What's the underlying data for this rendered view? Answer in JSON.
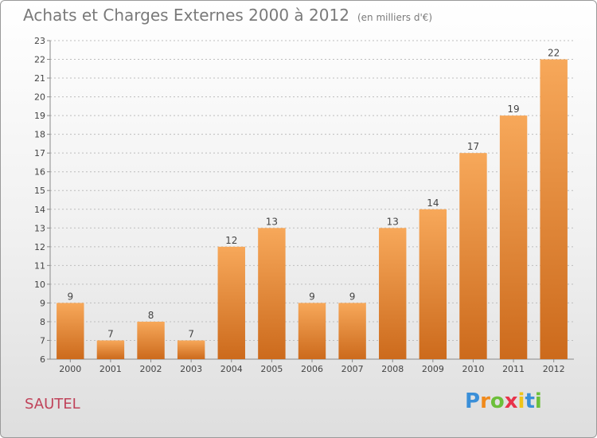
{
  "header": {
    "title": "Achats et Charges Externes 2000 à 2012",
    "unit": "(en milliers d'€)"
  },
  "footer": {
    "city": "SAUTEL",
    "brand": {
      "letters": [
        "P",
        "r",
        "o",
        "x",
        "i",
        "t",
        "i"
      ],
      "colors": [
        "#3a8fd8",
        "#f08a1c",
        "#6cbf3a",
        "#e8324a",
        "#f0c419",
        "#3a8fd8",
        "#6cbf3a"
      ]
    }
  },
  "colors": {
    "bar_light": "#f7a85a",
    "bar_dark": "#cc6a1c",
    "axis": "#8a8a8a",
    "grid": "#bdbdbd",
    "text": "#444444"
  },
  "chart_data": {
    "type": "bar",
    "categories": [
      "2000",
      "2001",
      "2002",
      "2003",
      "2004",
      "2005",
      "2006",
      "2007",
      "2008",
      "2009",
      "2010",
      "2011",
      "2012"
    ],
    "values": [
      9,
      7,
      8,
      7,
      12,
      13,
      9,
      9,
      13,
      14,
      17,
      19,
      22
    ],
    "ylim": [
      6,
      23
    ],
    "yticks": [
      6,
      7,
      8,
      9,
      10,
      11,
      12,
      13,
      14,
      15,
      16,
      17,
      18,
      19,
      20,
      21,
      22,
      23
    ],
    "grid": true,
    "data_labels": true
  }
}
